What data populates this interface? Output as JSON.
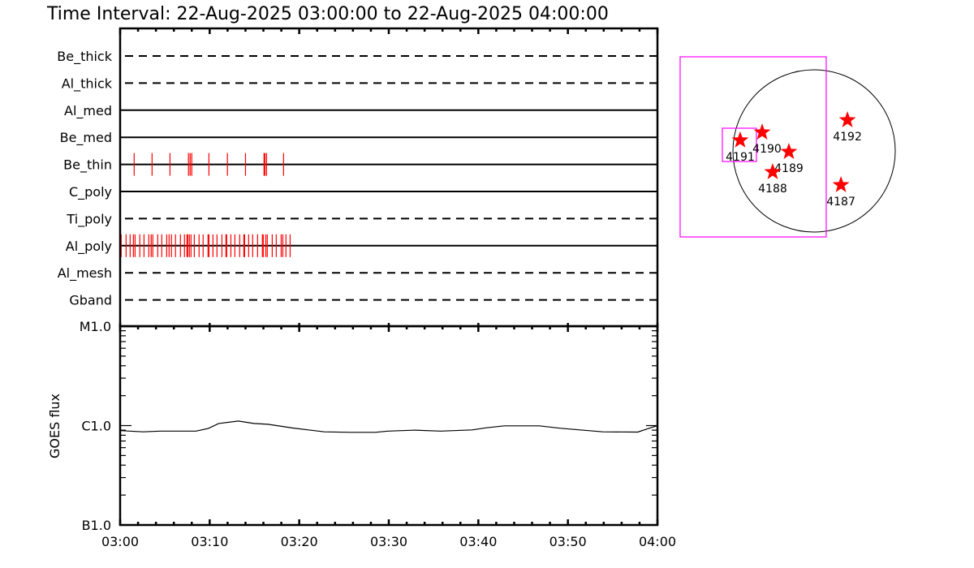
{
  "title": "Time Interval: 22-Aug-2025 03:00:00 to 22-Aug-2025 04:00:00",
  "colors": {
    "exposure": "#ff0000",
    "fov_box": "#ff00ff",
    "axes": "#000000",
    "star": "#ff0000"
  },
  "chart_data": [
    {
      "type": "timeline",
      "xlim": [
        "03:00",
        "04:00"
      ],
      "channels": [
        {
          "name": "Be_thick",
          "line": "dashed",
          "exposures": []
        },
        {
          "name": "Al_thick",
          "line": "dashed",
          "exposures": []
        },
        {
          "name": "Al_med",
          "line": "solid",
          "exposures": []
        },
        {
          "name": "Be_med",
          "line": "solid",
          "exposures": []
        },
        {
          "name": "Be_thin",
          "line": "solid",
          "exposures": [
            "03:01:34",
            "03:03:34",
            "03:05:34",
            "03:07:38",
            "03:07:49",
            "03:08:00",
            "03:09:55",
            "03:11:59",
            "03:14:00",
            "03:16:04",
            "03:16:10",
            "03:16:21",
            "03:18:15"
          ]
        },
        {
          "name": "C_poly",
          "line": "solid",
          "exposures": []
        },
        {
          "name": "Ti_poly",
          "line": "dashed",
          "exposures": []
        },
        {
          "name": "Al_poly",
          "line": "solid",
          "exposures": [
            "03:00:07",
            "03:00:40",
            "03:01:07",
            "03:01:29",
            "03:01:40",
            "03:02:12",
            "03:02:40",
            "03:03:12",
            "03:03:28",
            "03:03:39",
            "03:04:12",
            "03:04:39",
            "03:05:12",
            "03:05:28",
            "03:05:44",
            "03:06:11",
            "03:06:44",
            "03:07:11",
            "03:07:28",
            "03:07:33",
            "03:07:44",
            "03:07:55",
            "03:08:17",
            "03:08:49",
            "03:09:16",
            "03:09:49",
            "03:09:55",
            "03:10:22",
            "03:10:49",
            "03:11:22",
            "03:11:49",
            "03:11:54",
            "03:12:22",
            "03:12:49",
            "03:13:21",
            "03:13:49",
            "03:13:54",
            "03:14:21",
            "03:14:48",
            "03:15:21",
            "03:15:53",
            "03:15:59",
            "03:16:16",
            "03:16:26",
            "03:16:59",
            "03:17:26",
            "03:17:59",
            "03:18:10",
            "03:18:31",
            "03:18:59"
          ]
        },
        {
          "name": "Al_mesh",
          "line": "dashed",
          "exposures": []
        },
        {
          "name": "Gband",
          "line": "dashed",
          "exposures": []
        }
      ]
    },
    {
      "type": "line",
      "ylabel": "GOES flux",
      "yscale": "log",
      "ylim": [
        1e-07,
        1e-05
      ],
      "ytick_labels": [
        {
          "value": 1e-05,
          "label": "M1.0"
        },
        {
          "value": 1e-06,
          "label": "C1.0"
        },
        {
          "value": 1e-07,
          "label": "B1.0"
        }
      ],
      "xtick_labels": [
        "03:00",
        "03:10",
        "03:20",
        "03:30",
        "03:40",
        "03:50",
        "04:00"
      ],
      "xlim": [
        "03:00",
        "04:00"
      ],
      "points": [
        [
          "03:00:00",
          8.9e-07
        ],
        [
          "03:02:34",
          8.66e-07
        ],
        [
          "03:04:30",
          8.8e-07
        ],
        [
          "03:08:28",
          8.8e-07
        ],
        [
          "03:09:50",
          9.35e-07
        ],
        [
          "03:11:00",
          1.05e-06
        ],
        [
          "03:13:12",
          1.11e-06
        ],
        [
          "03:14:57",
          1.05e-06
        ],
        [
          "03:16:30",
          1.03e-06
        ],
        [
          "03:19:18",
          9.45e-07
        ],
        [
          "03:22:48",
          8.66e-07
        ],
        [
          "03:25:48",
          8.55e-07
        ],
        [
          "03:28:30",
          8.55e-07
        ],
        [
          "03:29:54",
          8.8e-07
        ],
        [
          "03:32:54",
          9e-07
        ],
        [
          "03:35:48",
          8.8e-07
        ],
        [
          "03:39:18",
          9.05e-07
        ],
        [
          "03:40:54",
          9.5e-07
        ],
        [
          "03:42:54",
          9.95e-07
        ],
        [
          "03:46:48",
          9.95e-07
        ],
        [
          "03:49:12",
          9.4e-07
        ],
        [
          "03:53:54",
          8.66e-07
        ],
        [
          "03:57:48",
          8.6e-07
        ],
        [
          "03:59:00",
          9.35e-07
        ],
        [
          "04:00:00",
          1e-06
        ]
      ]
    },
    {
      "type": "scatter",
      "solar_radius": 950,
      "regions": [
        {
          "label": "4191",
          "x": -865,
          "y": 124
        },
        {
          "label": "4190",
          "x": -608,
          "y": 218
        },
        {
          "label": "4189",
          "x": -295,
          "y": -10
        },
        {
          "label": "4188",
          "x": -485,
          "y": -247
        },
        {
          "label": "4192",
          "x": 390,
          "y": 361
        },
        {
          "label": "4187",
          "x": 314,
          "y": -399
        }
      ],
      "fov_boxes": [
        {
          "x": [
            -1568,
            142
          ],
          "y": [
            -1007,
            1102
          ]
        },
        {
          "x": [
            -1074,
            -675
          ],
          "y": [
            -124,
            266
          ]
        }
      ]
    }
  ]
}
